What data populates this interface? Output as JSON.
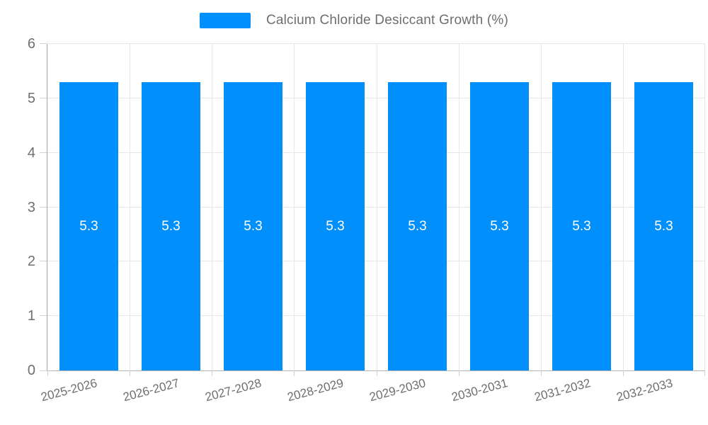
{
  "chart_data": {
    "type": "bar",
    "categories": [
      "2025-2026",
      "2026-2027",
      "2027-2028",
      "2028-2029",
      "2029-2030",
      "2030-2031",
      "2031-2032",
      "2032-2033"
    ],
    "series": [
      {
        "name": "Calcium Chloride Desiccant Growth (%)",
        "values": [
          5.3,
          5.3,
          5.3,
          5.3,
          5.3,
          5.3,
          5.3,
          5.3
        ]
      }
    ],
    "value_labels": [
      "5.3",
      "5.3",
      "5.3",
      "5.3",
      "5.3",
      "5.3",
      "5.3",
      "5.3"
    ],
    "title": "Calcium Chloride Desiccant Growth (%)",
    "xlabel": "",
    "ylabel": "",
    "ylim": [
      0,
      6
    ],
    "yticks": [
      0,
      1,
      2,
      3,
      4,
      5,
      6
    ],
    "grid": true,
    "legend_position": "top",
    "colors": {
      "bar": "#008FFB",
      "value_label": "#FFFFFF",
      "axis_text": "#6F6F6F",
      "grid_line": "#E7E7E7",
      "axis_line": "#A6A6A6"
    }
  }
}
